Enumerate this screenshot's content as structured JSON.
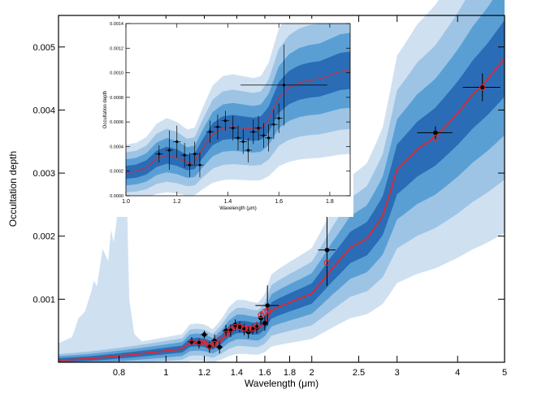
{
  "chart_data": [
    {
      "type": "line",
      "xlabel": "Wavelength (μm)",
      "ylabel": "Occultation depth",
      "x_scale": "log",
      "xlim": [
        0.6,
        5.0
      ],
      "ylim": [
        0.0,
        0.0055
      ],
      "xticks": [
        0.8,
        1,
        1.2,
        1.4,
        1.6,
        1.8,
        2,
        2.5,
        3,
        4,
        5
      ],
      "xtick_labels": [
        "0.8",
        "1",
        "1.2",
        "1.4",
        "1.6",
        "1.8",
        "2",
        "2.5",
        "3",
        "4",
        "5"
      ],
      "yticks": [
        0.001,
        0.002,
        0.003,
        0.004,
        0.005
      ],
      "ytick_labels": [
        "0.001",
        "0.002",
        "0.003",
        "0.004",
        "0.005"
      ],
      "colors": {
        "model": "#e0262e",
        "band1": "#cfe0f1",
        "band2": "#9dc4e5",
        "band3": "#5a9fd4",
        "band4": "#2a6db6",
        "points": "#000000"
      },
      "model": {
        "x": [
          0.6,
          0.7,
          0.8,
          0.9,
          1.0,
          1.08,
          1.12,
          1.16,
          1.2,
          1.25,
          1.3,
          1.35,
          1.4,
          1.45,
          1.5,
          1.55,
          1.6,
          1.65,
          1.7,
          1.8,
          2.0,
          2.2,
          2.4,
          2.6,
          2.8,
          3.0,
          3.3,
          3.6,
          4.0,
          4.3,
          4.6,
          5.0
        ],
        "y": [
          3e-05,
          6e-05,
          0.0001,
          0.00014,
          0.00018,
          0.00021,
          0.00031,
          0.00032,
          0.00031,
          0.00026,
          0.00036,
          0.00049,
          0.00056,
          0.00056,
          0.00054,
          0.00053,
          0.00062,
          0.00082,
          0.00087,
          0.00095,
          0.00109,
          0.00148,
          0.00182,
          0.00196,
          0.00232,
          0.00306,
          0.00338,
          0.00358,
          0.00395,
          0.00425,
          0.00448,
          0.00482
        ]
      },
      "bands": {
        "half_widths_fraction": [
          0.12,
          0.24,
          0.38,
          0.55
        ],
        "optical_envelope": {
          "x": [
            0.6,
            0.64,
            0.66,
            0.68,
            0.7,
            0.71,
            0.72,
            0.73,
            0.74,
            0.75,
            0.76,
            0.77,
            0.78,
            0.79,
            0.8,
            0.81,
            0.82,
            0.83,
            0.84,
            0.86,
            0.9,
            1.0
          ],
          "y": [
            0.0003,
            0.0004,
            0.0007,
            0.0008,
            0.0011,
            0.0013,
            0.0012,
            0.0015,
            0.0018,
            0.0017,
            0.0016,
            0.0021,
            0.0019,
            0.0022,
            0.0029,
            0.0032,
            0.0034,
            0.0027,
            0.001,
            0.00045,
            0.0003,
            0.00026
          ]
        }
      },
      "observed": [
        {
          "x": 1.13,
          "y": 0.00033,
          "xerr": 0.02,
          "yerr": 7e-05
        },
        {
          "x": 1.17,
          "y": 0.0003,
          "xerr": 0.02,
          "yerr": 8e-05
        },
        {
          "x": 1.2,
          "y": 0.00044,
          "xerr": 0.02,
          "yerr": 6e-05
        },
        {
          "x": 1.23,
          "y": 0.00024,
          "xerr": 0.02,
          "yerr": 9e-05
        },
        {
          "x": 1.26,
          "y": 0.00034,
          "xerr": 0.02,
          "yerr": 0.0001
        },
        {
          "x": 1.29,
          "y": 0.00024,
          "xerr": 0.02,
          "yerr": 0.0001
        },
        {
          "x": 1.33,
          "y": 0.0005,
          "xerr": 0.02,
          "yerr": 9e-05
        },
        {
          "x": 1.36,
          "y": 0.0005,
          "xerr": 0.02,
          "yerr": 0.0001
        },
        {
          "x": 1.39,
          "y": 0.00059,
          "xerr": 0.02,
          "yerr": 9e-05
        },
        {
          "x": 1.42,
          "y": 0.00056,
          "xerr": 0.02,
          "yerr": 8e-05
        },
        {
          "x": 1.45,
          "y": 0.00052,
          "xerr": 0.02,
          "yerr": 9e-05
        },
        {
          "x": 1.48,
          "y": 0.00048,
          "xerr": 0.02,
          "yerr": 0.0001
        },
        {
          "x": 1.51,
          "y": 0.00052,
          "xerr": 0.02,
          "yerr": 8e-05
        },
        {
          "x": 1.54,
          "y": 0.00055,
          "xerr": 0.02,
          "yerr": 9e-05
        },
        {
          "x": 1.57,
          "y": 0.0007,
          "xerr": 0.02,
          "yerr": 0.00011
        },
        {
          "x": 1.6,
          "y": 0.00062,
          "xerr": 0.02,
          "yerr": 0.00012
        },
        {
          "x": 1.62,
          "y": 0.0009,
          "xerr": 0.09,
          "yerr": 0.00032
        },
        {
          "x": 2.15,
          "y": 0.00178,
          "xerr": 0.09,
          "yerr": 0.00057
        },
        {
          "x": 3.6,
          "y": 0.00364,
          "xerr": 0.3,
          "yerr": 0.0001
        },
        {
          "x": 4.5,
          "y": 0.00436,
          "xerr": 0.4,
          "yerr": 0.00022
        }
      ],
      "binned_model": {
        "x": [
          1.13,
          1.17,
          1.2,
          1.23,
          1.26,
          1.29,
          1.33,
          1.36,
          1.39,
          1.42,
          1.45,
          1.48,
          1.51,
          1.54,
          1.57,
          1.6,
          1.62,
          2.15,
          3.6,
          4.5
        ],
        "y": [
          0.00031,
          0.00032,
          0.00031,
          0.00026,
          0.00029,
          0.00036,
          0.00045,
          0.00052,
          0.00056,
          0.00056,
          0.00054,
          0.00053,
          0.00054,
          0.00058,
          0.00075,
          0.0008,
          0.00082,
          0.00158,
          0.00356,
          0.00436
        ]
      }
    },
    {
      "type": "line",
      "xlabel": "Wavelength (μm)",
      "ylabel": "Occultation depth",
      "xlim": [
        1.0,
        1.88
      ],
      "ylim": [
        0.0,
        0.0014
      ],
      "xticks": [
        1.0,
        1.2,
        1.4,
        1.6,
        1.8
      ],
      "xtick_labels": [
        "1.0",
        "1.2",
        "1.4",
        "1.6",
        "1.8"
      ],
      "yticks": [
        0.0,
        0.0002,
        0.0004,
        0.0006,
        0.0008,
        0.001,
        0.0012,
        0.0014
      ],
      "ytick_labels": [
        "0.0000",
        "0.0002",
        "0.0004",
        "0.0006",
        "0.0008",
        "0.0010",
        "0.0012",
        "0.0014"
      ],
      "model": {
        "x": [
          1.0,
          1.04,
          1.08,
          1.12,
          1.16,
          1.2,
          1.24,
          1.27,
          1.3,
          1.34,
          1.38,
          1.42,
          1.46,
          1.5,
          1.53,
          1.56,
          1.6,
          1.64,
          1.68,
          1.72,
          1.76,
          1.8,
          1.84,
          1.88
        ],
        "y": [
          0.00019,
          0.0002,
          0.00023,
          0.0003,
          0.00033,
          0.00031,
          0.00027,
          0.00028,
          0.00038,
          0.0005,
          0.00055,
          0.00056,
          0.00055,
          0.00054,
          0.00055,
          0.00062,
          0.0008,
          0.00088,
          0.00092,
          0.00094,
          0.00095,
          0.00098,
          0.00101,
          0.00102
        ]
      },
      "observed": [
        {
          "x": 1.13,
          "y": 0.00034,
          "xerr": 0.015,
          "yerr": 7e-05
        },
        {
          "x": 1.17,
          "y": 0.00037,
          "xerr": 0.015,
          "yerr": 0.00016
        },
        {
          "x": 1.2,
          "y": 0.00044,
          "xerr": 0.015,
          "yerr": 0.00013
        },
        {
          "x": 1.23,
          "y": 0.00033,
          "xerr": 0.015,
          "yerr": 0.0001
        },
        {
          "x": 1.25,
          "y": 0.00025,
          "xerr": 0.015,
          "yerr": 0.0001
        },
        {
          "x": 1.27,
          "y": 0.00034,
          "xerr": 0.015,
          "yerr": 0.0001
        },
        {
          "x": 1.29,
          "y": 0.00025,
          "xerr": 0.015,
          "yerr": 0.0001
        },
        {
          "x": 1.33,
          "y": 0.00052,
          "xerr": 0.015,
          "yerr": 9e-05
        },
        {
          "x": 1.36,
          "y": 0.00056,
          "xerr": 0.015,
          "yerr": 0.0001
        },
        {
          "x": 1.39,
          "y": 0.00061,
          "xerr": 0.015,
          "yerr": 8e-05
        },
        {
          "x": 1.42,
          "y": 0.00055,
          "xerr": 0.015,
          "yerr": 0.0001
        },
        {
          "x": 1.44,
          "y": 0.00047,
          "xerr": 0.015,
          "yerr": 0.0001
        },
        {
          "x": 1.46,
          "y": 0.00044,
          "xerr": 0.015,
          "yerr": 0.0001
        },
        {
          "x": 1.48,
          "y": 0.00037,
          "xerr": 0.015,
          "yerr": 0.0001
        },
        {
          "x": 1.5,
          "y": 0.00052,
          "xerr": 0.015,
          "yerr": 0.0001
        },
        {
          "x": 1.52,
          "y": 0.00055,
          "xerr": 0.015,
          "yerr": 0.0001
        },
        {
          "x": 1.54,
          "y": 0.00049,
          "xerr": 0.015,
          "yerr": 0.0001
        },
        {
          "x": 1.56,
          "y": 0.00047,
          "xerr": 0.015,
          "yerr": 0.00011
        },
        {
          "x": 1.58,
          "y": 0.00058,
          "xerr": 0.015,
          "yerr": 0.00012
        },
        {
          "x": 1.6,
          "y": 0.00063,
          "xerr": 0.015,
          "yerr": 0.00012
        },
        {
          "x": 1.62,
          "y": 0.0009,
          "xerr": 0.17,
          "yerr": 0.00033
        }
      ]
    }
  ]
}
